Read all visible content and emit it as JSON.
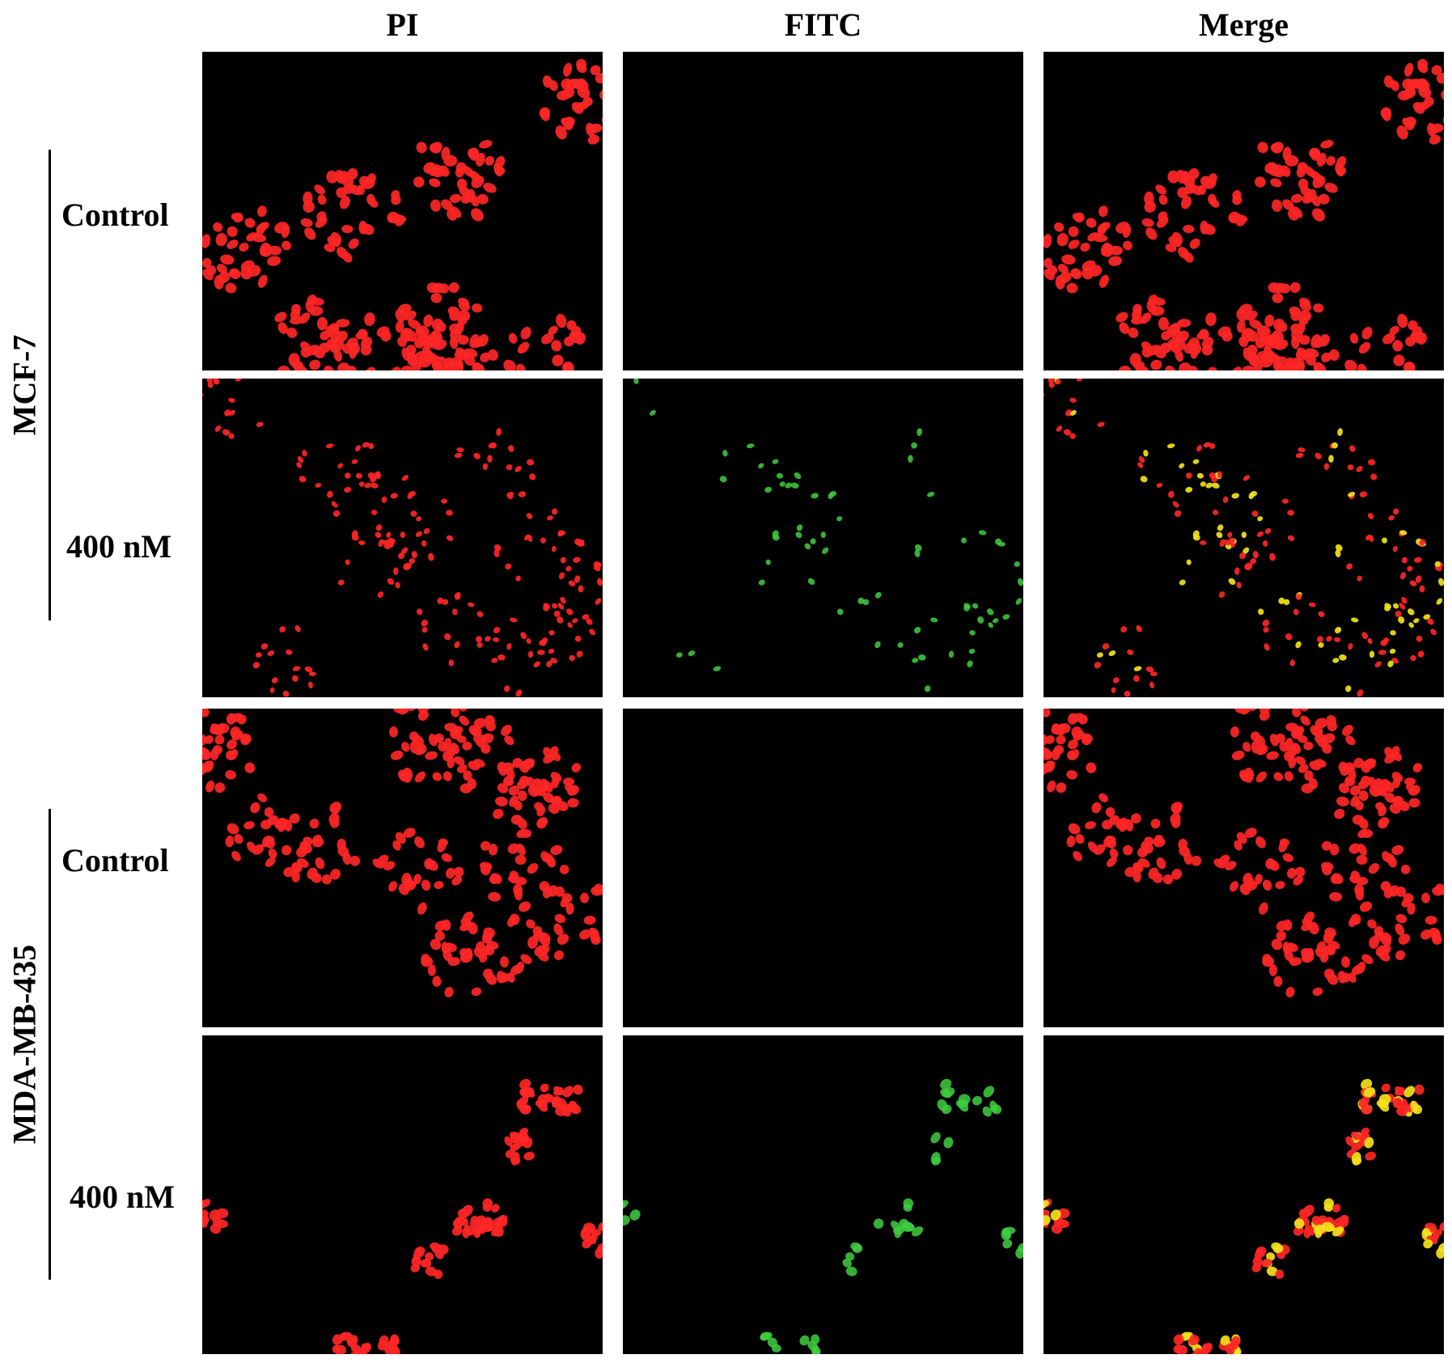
{
  "columns": [
    "PI",
    "FITC",
    "Merge"
  ],
  "groups": [
    {
      "name": "MCF-7",
      "rows": [
        {
          "label": "Control",
          "panels": [
            {
              "channel": "PI",
              "signal": "red"
            },
            {
              "channel": "FITC",
              "signal": "none"
            },
            {
              "channel": "Merge",
              "signal": "red"
            }
          ]
        },
        {
          "label": "400 nM",
          "panels": [
            {
              "channel": "PI",
              "signal": "sparse-red"
            },
            {
              "channel": "FITC",
              "signal": "sparse-green"
            },
            {
              "channel": "Merge",
              "signal": "red-yellow"
            }
          ]
        }
      ]
    },
    {
      "name": "MDA-MB-435",
      "rows": [
        {
          "label": "Control",
          "panels": [
            {
              "channel": "PI",
              "signal": "red"
            },
            {
              "channel": "FITC",
              "signal": "none"
            },
            {
              "channel": "Merge",
              "signal": "red"
            }
          ]
        },
        {
          "label": "400 nM",
          "panels": [
            {
              "channel": "PI",
              "signal": "clustered-red"
            },
            {
              "channel": "FITC",
              "signal": "clustered-green"
            },
            {
              "channel": "Merge",
              "signal": "red-yellow"
            }
          ]
        }
      ]
    }
  ],
  "colors": {
    "red": "#ff2626",
    "green": "#3fcf3f",
    "yellow": "#f2e21a",
    "background": "#000000"
  }
}
